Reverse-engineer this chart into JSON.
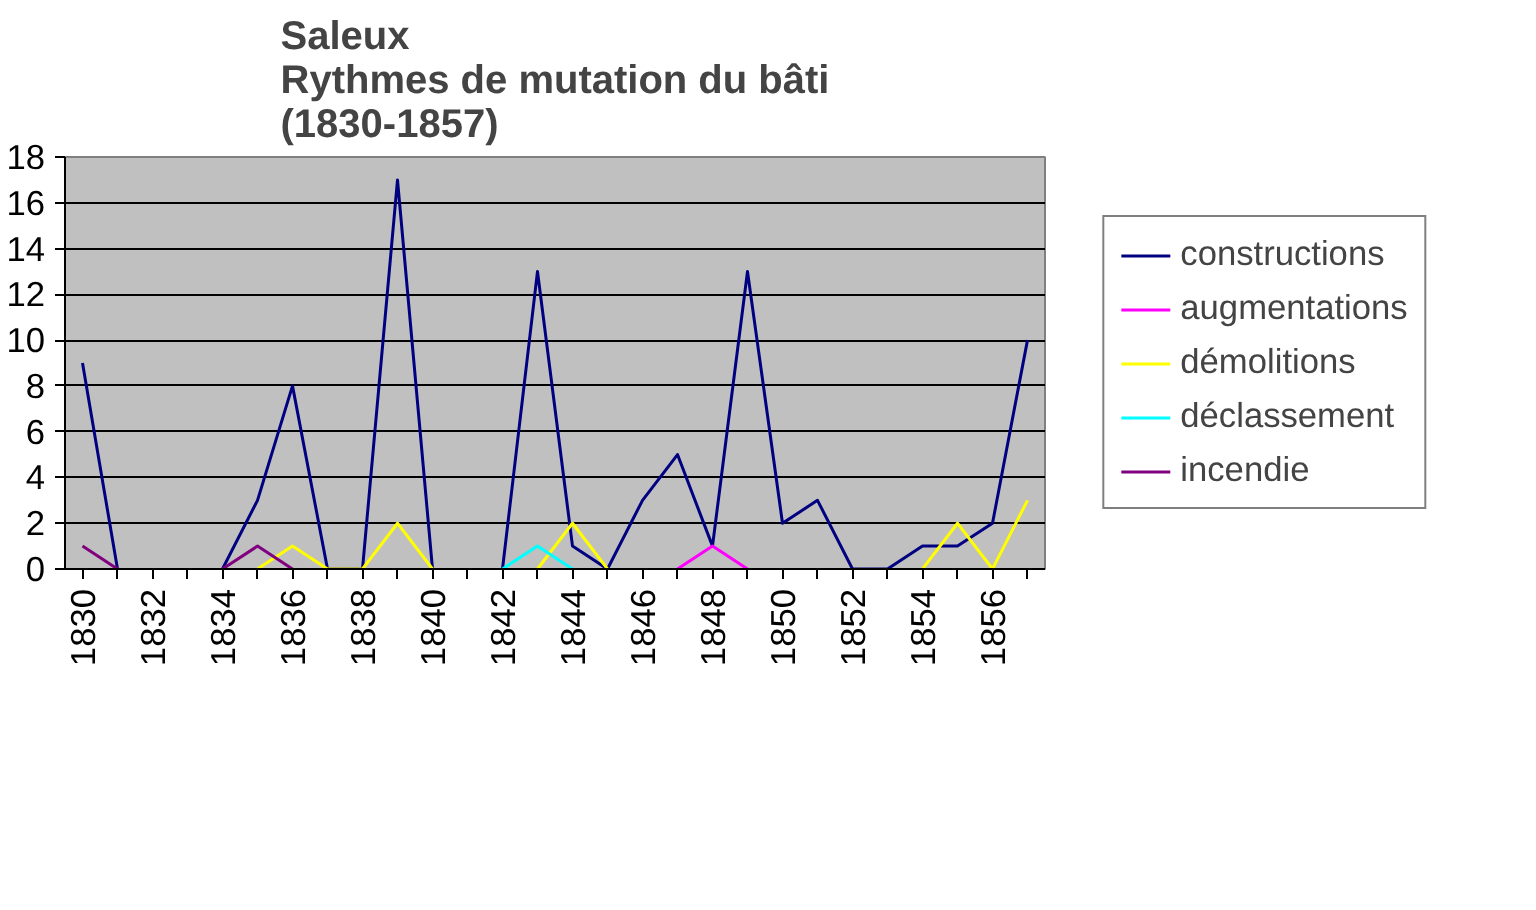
{
  "chart_data": {
    "type": "line",
    "title": "Saleux\nRythmes de mutation du bâti\n(1830-1857)",
    "categories": [
      "1830",
      null,
      "1832",
      null,
      "1834",
      null,
      "1836",
      null,
      "1838",
      null,
      "1840",
      null,
      "1842",
      null,
      "1844",
      null,
      "1846",
      null,
      "1848",
      null,
      "1850",
      null,
      "1852",
      null,
      "1854",
      null,
      "1856",
      null
    ],
    "series": [
      {
        "name": "constructions",
        "color": "#000080",
        "values": [
          9,
          0,
          null,
          null,
          0,
          3,
          8,
          0,
          0,
          17,
          0,
          null,
          0,
          13,
          1,
          0,
          3,
          5,
          1,
          13,
          2,
          3,
          0,
          0,
          1,
          1,
          2,
          10
        ]
      },
      {
        "name": "augmentations",
        "color": "#ff00ff",
        "values": [
          null,
          null,
          null,
          null,
          null,
          null,
          null,
          null,
          null,
          null,
          null,
          null,
          null,
          null,
          null,
          null,
          null,
          0,
          1,
          0,
          null,
          null,
          null,
          null,
          null,
          null,
          null,
          null
        ]
      },
      {
        "name": "démolitions",
        "color": "#ffff00",
        "values": [
          null,
          null,
          null,
          null,
          null,
          0,
          1,
          0,
          0,
          2,
          0,
          null,
          null,
          0,
          2,
          0,
          null,
          null,
          null,
          null,
          null,
          null,
          null,
          null,
          0,
          2,
          0,
          3
        ]
      },
      {
        "name": "déclassement",
        "color": "#00ffff",
        "values": [
          null,
          null,
          null,
          null,
          null,
          null,
          null,
          null,
          null,
          null,
          null,
          null,
          0,
          1,
          0,
          null,
          null,
          null,
          null,
          null,
          null,
          null,
          null,
          null,
          null,
          null,
          null,
          null
        ]
      },
      {
        "name": "incendie",
        "color": "#800080",
        "values": [
          1,
          0,
          null,
          null,
          0,
          1,
          0,
          null,
          null,
          null,
          null,
          null,
          null,
          null,
          null,
          null,
          null,
          null,
          null,
          null,
          null,
          null,
          null,
          null,
          null,
          null,
          null,
          null
        ]
      }
    ],
    "ylim": [
      0,
      18
    ],
    "yticks": [
      0,
      2,
      4,
      6,
      8,
      10,
      12,
      14,
      16,
      18
    ],
    "grid": "y",
    "legend": "right"
  }
}
